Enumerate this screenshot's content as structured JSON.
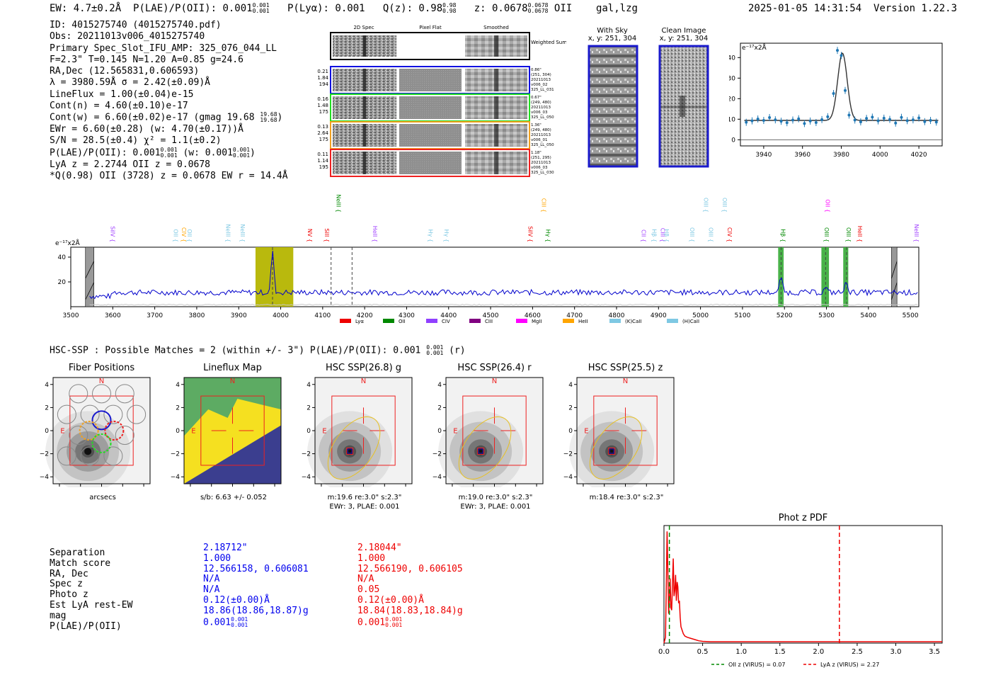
{
  "header": {
    "ew": "EW: 4.7±0.2Å",
    "plae": "P(LAE)/P(OII): 0.001",
    "plae_sup": "0.001",
    "plae_sub": "0.001",
    "plya": "P(Lyα): 0.001",
    "qz": "Q(z): 0.98",
    "qz_sup": "0.98",
    "qz_sub": "0.98",
    "z": "z: 0.0678",
    "z_sup": "0.0678",
    "z_sub": "0.0678",
    "z_line": "OII",
    "flags": "gal,lzg",
    "datetime": "2025-01-05 14:31:54",
    "version": "Version 1.22.3"
  },
  "info": {
    "id": "ID: 4015275740 (4015275740.pdf)",
    "obs": "Obs: 20211013v006_4015275740",
    "slot": "Primary Spec_Slot_IFU_AMP: 325_076_044_LL",
    "params": "F=2.3\"  T=0.145  N=1.20  A=0.85  g=24.6",
    "radec": "RA,Dec (12.565831,0.606593)",
    "lambda": "λ = 3980.59Å  σ = 2.42(±0.09)Å",
    "lineflux": "LineFlux = 1.00(±0.04)e-15",
    "contn": "Cont(n) = 4.60(±0.10)e-17",
    "contw": "Cont(w) = 6.60(±0.02)e-17 (gmag 19.68",
    "contw_sup": "19.68",
    "contw_sub": "19.68",
    "ewr": "EWr = 6.60(±0.28) (w: 4.70(±0.17))Å",
    "sn": "S/N = 28.5(±0.4)  χ² = 1.1(±0.2)",
    "plae": "P(LAE)/P(OII): 0.001",
    "plae_sup": "0.001",
    "plae_sub": "0.001",
    "plae_w": "(w: 0.001",
    "plae_w_sup": "0.001",
    "plae_w_sub": "0.001",
    "lya": "LyA z = 2.2744  OII z = 0.0678",
    "q": "*Q(0.98) OII (3728) z = 0.0678  EW r = 14.4Å"
  },
  "spec2d": {
    "headers": [
      "2D Spec",
      "Pixel Flat",
      "Smoothed"
    ],
    "weighted_sum": "Weighted Sum",
    "rows": [
      {
        "left": [
          "0.21",
          "1.84",
          "194"
        ],
        "right": [
          "0.86\"",
          "(251, 304)",
          "20211013",
          "v006_02",
          "325_LL_031"
        ],
        "color": "#1010e0"
      },
      {
        "left": [
          "0.16",
          "1.48",
          "175"
        ],
        "right": [
          "0.67\"",
          "(249, 480)",
          "20211013",
          "v006_03",
          "325_LL_050"
        ],
        "color": "#22dd22"
      },
      {
        "left": [
          "0.13",
          "2.64",
          "175"
        ],
        "right": [
          "1.36\"",
          "(249, 480)",
          "20211013",
          "v006_01",
          "325_LL_050"
        ],
        "color": "#f0a020"
      },
      {
        "left": [
          "0.11",
          "1.14",
          "195"
        ],
        "right": [
          "1.18\"",
          "(251, 295)",
          "20211013",
          "v006_03",
          "325_LL_030"
        ],
        "color": "#ee2020"
      }
    ]
  },
  "cutouts": {
    "with_sky_title": "With Sky",
    "with_sky_xy": "x, y: 251, 304",
    "clean_title": "Clean Image",
    "clean_xy": "x, y: 251, 304"
  },
  "zoom_spec": {
    "units": "e⁻¹⁷x2Å",
    "x_ticks": [
      "3940",
      "3960",
      "3980",
      "4000",
      "4020"
    ],
    "y_ticks": [
      "0",
      "10",
      "20",
      "30",
      "40"
    ]
  },
  "full_spec": {
    "units": "e⁻¹⁷x2Å",
    "x_ticks": [
      "3500",
      "3600",
      "3700",
      "3800",
      "3900",
      "4000",
      "4100",
      "4200",
      "4300",
      "4400",
      "4500",
      "4600",
      "4700",
      "4800",
      "4900",
      "5000",
      "5100",
      "5200",
      "5300",
      "5400",
      "5500"
    ],
    "y_ticks": [
      "20",
      "40"
    ],
    "line_labels": [
      {
        "t": "SiIV",
        "w": 3595,
        "c": "#a040ff",
        "row": 1
      },
      {
        "t": "OII",
        "w": 3745,
        "c": "#7ec8e3",
        "row": 1
      },
      {
        "t": "CIV",
        "w": 3765,
        "c": "#ffa500",
        "row": 1
      },
      {
        "t": "OII",
        "w": 3778,
        "c": "#7ec8e3",
        "row": 1
      },
      {
        "t": "NeIII",
        "w": 3870,
        "c": "#7ec8e3",
        "row": 1
      },
      {
        "t": "NeIII",
        "w": 3905,
        "c": "#7ec8e3",
        "row": 1
      },
      {
        "t": "NV",
        "w": 4065,
        "c": "#ee0000",
        "row": 1
      },
      {
        "t": "NeIII",
        "w": 4133,
        "c": "#008800",
        "row": 0
      },
      {
        "t": "SiII",
        "w": 4105,
        "c": "#ee0000",
        "row": 1
      },
      {
        "t": "HeII",
        "w": 4220,
        "c": "#a040ff",
        "row": 1
      },
      {
        "t": "Hγ",
        "w": 4352,
        "c": "#7ec8e3",
        "row": 1
      },
      {
        "t": "Hγ",
        "w": 4390,
        "c": "#7ec8e3",
        "row": 1
      },
      {
        "t": "SiIV",
        "w": 4590,
        "c": "#ee0000",
        "row": 1
      },
      {
        "t": "CIII",
        "w": 4622,
        "c": "#ffa500",
        "row": 0
      },
      {
        "t": "Hγ",
        "w": 4632,
        "c": "#008800",
        "row": 1
      },
      {
        "t": "CII",
        "w": 4860,
        "c": "#a040ff",
        "row": 1
      },
      {
        "t": "Hβ",
        "w": 4885,
        "c": "#7ec8e3",
        "row": 1
      },
      {
        "t": "CIII",
        "w": 4905,
        "c": "#a040ff",
        "row": 1
      },
      {
        "t": "Hβ",
        "w": 4915,
        "c": "#7ec8e3",
        "row": 1
      },
      {
        "t": "OIII",
        "w": 4975,
        "c": "#7ec8e3",
        "row": 1
      },
      {
        "t": "OIII",
        "w": 5008,
        "c": "#7ec8e3",
        "row": 0
      },
      {
        "t": "OIII",
        "w": 5020,
        "c": "#7ec8e3",
        "row": 1
      },
      {
        "t": "OIII",
        "w": 5053,
        "c": "#7ec8e3",
        "row": 0
      },
      {
        "t": "CIV",
        "w": 5065,
        "c": "#ee0000",
        "row": 1
      },
      {
        "t": "Hβ",
        "w": 5192,
        "c": "#008800",
        "row": 1
      },
      {
        "t": "OII",
        "w": 5298,
        "c": "#ff00ff",
        "row": 0
      },
      {
        "t": "OIII",
        "w": 5296,
        "c": "#008800",
        "row": 1
      },
      {
        "t": "OIII",
        "w": 5348,
        "c": "#008800",
        "row": 1
      },
      {
        "t": "HeII",
        "w": 5375,
        "c": "#ee0000",
        "row": 1
      },
      {
        "t": "NeIII",
        "w": 5510,
        "c": "#a040ff",
        "row": 1
      }
    ],
    "legend": [
      {
        "label": "Lyα",
        "color": "#ee0000"
      },
      {
        "label": "OII",
        "color": "#008800"
      },
      {
        "label": "CIV",
        "color": "#9040ff"
      },
      {
        "label": "CIII",
        "color": "#800080"
      },
      {
        "label": "MgII",
        "color": "#ff00ff"
      },
      {
        "label": "HeII",
        "color": "#ffa500"
      },
      {
        "label": "(K)CaII",
        "color": "#7ec8e3"
      },
      {
        "label": "(H)CaII",
        "color": "#7ec8e3"
      }
    ]
  },
  "hsc": {
    "summary": "HSC-SSP : Possible Matches = 2 (within +/- 3\")  P(LAE)/P(OII): 0.001",
    "summary_sup": "0.001",
    "summary_sub": "0.001",
    "summary_tail": "(r)",
    "panels": [
      {
        "title": "Fiber Positions",
        "cap1": "arcsecs",
        "cap2": ""
      },
      {
        "title": "Lineflux Map",
        "cap1": "s/b: 6.63 +/- 0.052",
        "cap2": ""
      },
      {
        "title": "HSC SSP(26.8) g",
        "cap1": "m:19.6  re:3.0\"  s:2.3\"",
        "cap2": "EWr: 3, PLAE: 0.001"
      },
      {
        "title": "HSC SSP(26.4) r",
        "cap1": "m:19.0  re:3.0\"  s:2.3\"",
        "cap2": "EWr: 3, PLAE: 0.001"
      },
      {
        "title": "HSC SSP(25.5) z",
        "cap1": "m:18.4  re:3.0\"  s:2.3\"",
        "cap2": ""
      }
    ],
    "axis_ticks": [
      "−4",
      "−2",
      "0",
      "2",
      "4"
    ],
    "north": "N",
    "east": "E"
  },
  "table": {
    "labels": [
      "Separation",
      "Match score",
      "RA, Dec",
      "Spec z",
      "Photo z",
      "Est LyA rest-EW",
      "mag",
      "P(LAE)/P(OII)"
    ],
    "col_blue": [
      "2.18712\"",
      "1.000",
      "12.566158, 0.606081",
      "N/A",
      "N/A",
      "0.12(±0.00)Å",
      "18.86(18.86,18.87)g",
      "0.001"
    ],
    "col_blue_sup": "0.001",
    "col_blue_sub": "0.001",
    "col_red": [
      "2.18044\"",
      "1.000",
      "12.566190, 0.606105",
      "N/A",
      "0.05",
      "0.12(±0.00)Å",
      "18.84(18.83,18.84)g",
      "0.001"
    ],
    "col_red_sup": "0.001",
    "col_red_sub": "0.001"
  },
  "chart_data": [
    {
      "type": "scatter",
      "title": "",
      "xlabel": "",
      "ylabel": "e⁻¹⁷x2Å",
      "xlim": [
        3928,
        4032
      ],
      "ylim": [
        -3,
        47
      ],
      "x": [
        3931,
        3934,
        3937,
        3940,
        3943,
        3946,
        3949,
        3952,
        3955,
        3958,
        3961,
        3964,
        3967,
        3970,
        3973,
        3976,
        3978,
        3980,
        3982,
        3984,
        3987,
        3990,
        3993,
        3996,
        3999,
        4002,
        4005,
        4008,
        4011,
        4014,
        4017,
        4020,
        4023,
        4026,
        4029
      ],
      "y": [
        8.5,
        9.2,
        10.1,
        9.4,
        10.8,
        9.7,
        9.0,
        8.3,
        9.6,
        10.2,
        7.9,
        9.1,
        8.4,
        9.8,
        11.2,
        22.5,
        43.5,
        41.0,
        24.0,
        12.0,
        9.6,
        8.7,
        10.4,
        11.0,
        9.2,
        10.5,
        9.9,
        8.1,
        10.9,
        9.3,
        9.7,
        10.6,
        8.8,
        9.4,
        8.6
      ],
      "fit": {
        "baseline": 9.4,
        "amplitude": 32.8,
        "center": 3980.59,
        "sigma": 2.42
      }
    },
    {
      "type": "line",
      "title": "",
      "xlabel": "",
      "ylabel": "e⁻¹⁷x2Å",
      "xlim": [
        3500,
        5520
      ],
      "ylim": [
        0,
        48
      ],
      "continuum": 11.5,
      "emission_peaks": [
        {
          "w": 3980.59,
          "height": 46
        },
        {
          "w": 5192,
          "height": 25
        },
        {
          "w": 5298,
          "height": 16
        },
        {
          "w": 5348,
          "height": 21
        }
      ],
      "highlighted_regions": [
        {
          "from": 3940,
          "to": 4030,
          "color": "#b5b500"
        },
        {
          "from": 5185,
          "to": 5198,
          "color": "#3fae3f"
        },
        {
          "from": 5288,
          "to": 5306,
          "color": "#3fae3f"
        },
        {
          "from": 5340,
          "to": 5352,
          "color": "#3fae3f"
        }
      ],
      "masked_regions": [
        {
          "from": 3535,
          "to": 3555
        },
        {
          "from": 5455,
          "to": 5468
        }
      ],
      "dashed_lines": [
        3980.59,
        4120,
        4170,
        5192,
        5298,
        5348
      ]
    },
    {
      "type": "line",
      "title": "Phot z PDF",
      "xlabel": "",
      "ylabel": "",
      "xlim": [
        0,
        3.6
      ],
      "ylim": [
        0,
        1.0
      ],
      "x_ticks": [
        "0.0",
        "0.5",
        "1.0",
        "1.5",
        "2.0",
        "2.5",
        "3.0",
        "3.5"
      ],
      "x": [
        0.0,
        0.02,
        0.04,
        0.06,
        0.07,
        0.08,
        0.09,
        0.1,
        0.11,
        0.12,
        0.13,
        0.14,
        0.15,
        0.16,
        0.17,
        0.18,
        0.19,
        0.2,
        0.21,
        0.22,
        0.23,
        0.24,
        0.25,
        0.27,
        0.3,
        0.35,
        0.4,
        0.45,
        0.5,
        0.6,
        0.8,
        1.0,
        1.5,
        2.0,
        2.5,
        3.0,
        3.6
      ],
      "y": [
        0.0,
        0.05,
        0.95,
        0.25,
        0.35,
        0.55,
        0.3,
        0.28,
        0.5,
        0.72,
        0.4,
        0.45,
        0.58,
        0.36,
        0.52,
        0.48,
        0.34,
        0.36,
        0.22,
        0.14,
        0.12,
        0.1,
        0.08,
        0.06,
        0.05,
        0.04,
        0.03,
        0.02,
        0.015,
        0.012,
        0.012,
        0.012,
        0.012,
        0.012,
        0.012,
        0.012,
        0.012
      ],
      "vlines": [
        {
          "x": 0.07,
          "color": "#008800",
          "label": "OII z (VIRUS) = 0.07"
        },
        {
          "x": 2.27,
          "color": "#ee0000",
          "label": "LyA z (VIRUS) = 2.27"
        }
      ]
    }
  ]
}
